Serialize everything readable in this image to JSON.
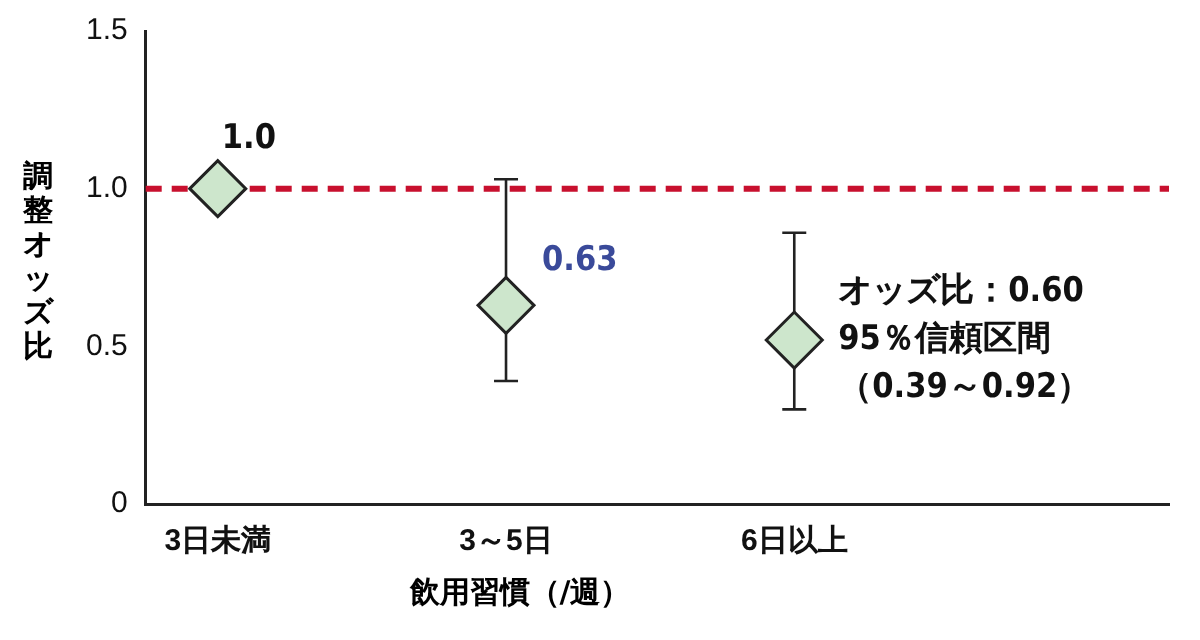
{
  "chart_data": {
    "type": "scatter",
    "xlabel": "飲用習慣（/週）",
    "ylabel": "調整オッズ比",
    "categories": [
      "3日未満",
      "3～5日",
      "6日以上"
    ],
    "values": [
      1.0,
      0.63,
      0.52
    ],
    "errors": [
      null,
      [
        0.39,
        1.03
      ],
      [
        0.3,
        0.86
      ]
    ],
    "value_labels": [
      "1.0",
      "0.63",
      null
    ],
    "color": "#cde6cc",
    "marker": "diamond",
    "ylim": [
      0,
      1.5
    ],
    "yticks": [
      0,
      0.5,
      {
        "value": 1,
        "label": "1.0"
      },
      1.5
    ],
    "ref_lines": [
      {
        "axis": "y",
        "value": 1,
        "color": "#c8102e",
        "line_style": "dashed"
      }
    ],
    "annotations": [
      "オッズ比：0.60",
      "95％信頼区間",
      "（0.39～0.92）"
    ],
    "grid": false,
    "legend": false
  }
}
